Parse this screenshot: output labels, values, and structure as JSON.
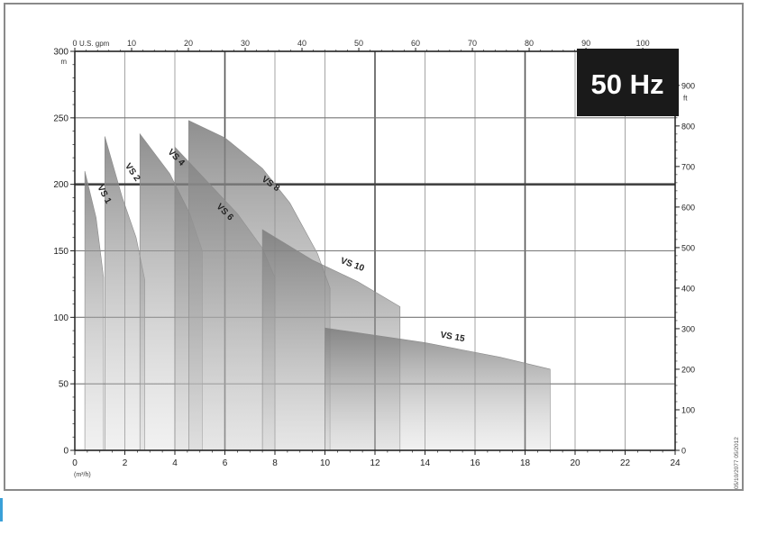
{
  "badge": {
    "text": "50 Hz"
  },
  "footnote": "05/10/2077 05/2012",
  "chart_data": {
    "type": "area",
    "title": "",
    "bottom_axis": {
      "label": "(m³/h)",
      "range": [
        0,
        24
      ],
      "ticks": [
        0,
        2,
        4,
        6,
        8,
        10,
        12,
        14,
        16,
        18,
        20,
        22,
        24
      ]
    },
    "top_axis": {
      "label": "U.S. gpm",
      "range": [
        0,
        105.7
      ],
      "ticks": [
        0,
        10,
        20,
        30,
        40,
        50,
        60,
        70,
        80,
        90,
        100
      ]
    },
    "left_axis": {
      "label": "m",
      "range": [
        0,
        300
      ],
      "ticks": [
        0,
        50,
        100,
        150,
        200,
        250,
        300
      ]
    },
    "right_axis": {
      "label": "ft",
      "range": [
        0,
        984
      ],
      "ticks": [
        0,
        100,
        200,
        300,
        400,
        500,
        600,
        700,
        800,
        900
      ]
    },
    "grid": true,
    "series": [
      {
        "name": "VS 1",
        "outline": [
          [
            0.4,
            0
          ],
          [
            0.4,
            210
          ],
          [
            0.85,
            175
          ],
          [
            1.15,
            130
          ],
          [
            1.15,
            0
          ]
        ]
      },
      {
        "name": "VS 2",
        "outline": [
          [
            1.2,
            0
          ],
          [
            1.2,
            236
          ],
          [
            1.9,
            190
          ],
          [
            2.45,
            160
          ],
          [
            2.8,
            128
          ],
          [
            2.8,
            0
          ]
        ]
      },
      {
        "name": "VS 4",
        "outline": [
          [
            2.6,
            0
          ],
          [
            2.6,
            238
          ],
          [
            3.8,
            208
          ],
          [
            4.6,
            178
          ],
          [
            5.1,
            150
          ],
          [
            5.1,
            0
          ]
        ]
      },
      {
        "name": "VS 6",
        "outline": [
          [
            4.0,
            0
          ],
          [
            4.0,
            228
          ],
          [
            5.5,
            198
          ],
          [
            6.5,
            178
          ],
          [
            7.5,
            152
          ],
          [
            8.0,
            130
          ],
          [
            8.0,
            0
          ]
        ]
      },
      {
        "name": "VS 8",
        "outline": [
          [
            4.55,
            0
          ],
          [
            4.55,
            248
          ],
          [
            6.0,
            235
          ],
          [
            7.5,
            212
          ],
          [
            8.6,
            186
          ],
          [
            9.7,
            148
          ],
          [
            10.2,
            122
          ],
          [
            10.2,
            0
          ]
        ]
      },
      {
        "name": "VS 10",
        "outline": [
          [
            7.5,
            0
          ],
          [
            7.5,
            166
          ],
          [
            9.5,
            143
          ],
          [
            11.3,
            127
          ],
          [
            13.0,
            108
          ],
          [
            13.0,
            0
          ]
        ]
      },
      {
        "name": "VS 15",
        "outline": [
          [
            10.0,
            0
          ],
          [
            10.0,
            92
          ],
          [
            14.0,
            81
          ],
          [
            17.0,
            70
          ],
          [
            19.0,
            61
          ],
          [
            19.0,
            0
          ]
        ]
      }
    ]
  }
}
